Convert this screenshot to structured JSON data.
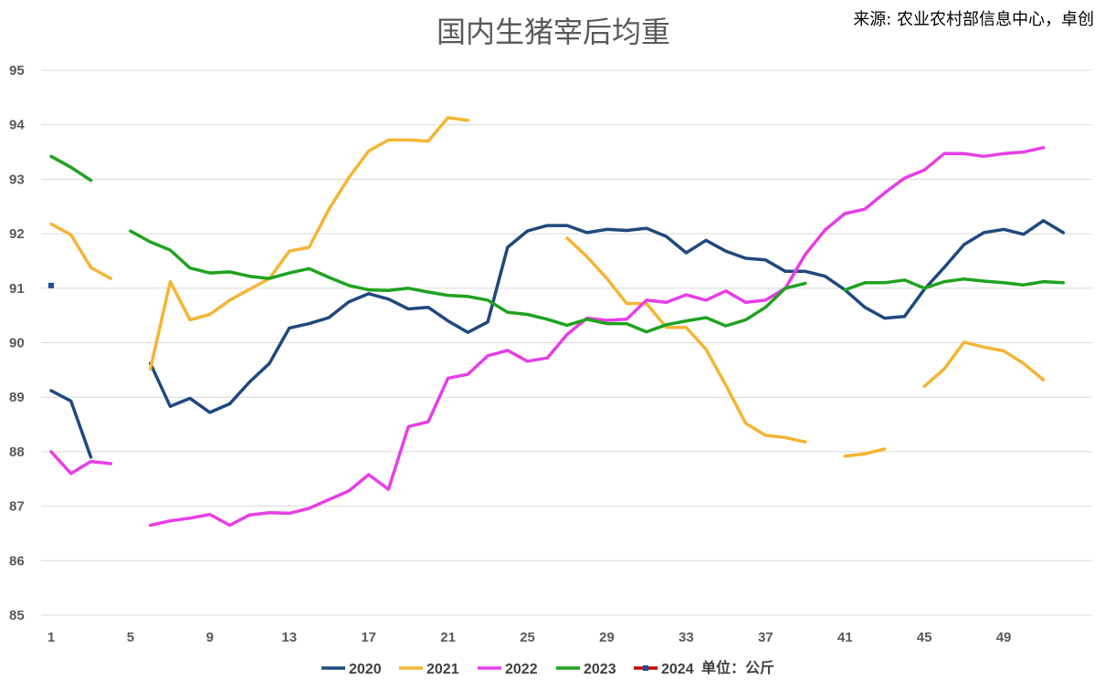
{
  "chart_data": {
    "type": "line",
    "title": "国内生猪宰后均重",
    "source": "来源: 农业农村部信息中心，卓创",
    "unit_label": "单位：公斤",
    "xlabel": "",
    "ylabel": "",
    "ylim": [
      85,
      95
    ],
    "y_ticks": [
      85,
      86,
      87,
      88,
      89,
      90,
      91,
      92,
      93,
      94,
      95
    ],
    "x_range": [
      1,
      53
    ],
    "x_ticks": [
      1,
      5,
      9,
      13,
      17,
      21,
      25,
      29,
      33,
      37,
      41,
      45,
      49
    ],
    "grid": "horizontal",
    "legend_position": "bottom",
    "series": [
      {
        "name": "2020",
        "color": "#1F497D",
        "values": [
          89.12,
          88.93,
          87.9,
          null,
          null,
          89.62,
          88.83,
          88.98,
          88.72,
          88.88,
          89.28,
          89.62,
          90.27,
          90.35,
          90.46,
          90.75,
          90.9,
          90.8,
          90.62,
          90.65,
          90.4,
          90.19,
          90.38,
          91.75,
          92.05,
          92.15,
          92.15,
          92.02,
          92.08,
          92.06,
          92.1,
          91.95,
          91.65,
          91.88,
          91.68,
          91.55,
          91.52,
          91.31,
          91.31,
          91.22,
          90.97,
          90.65,
          90.45,
          90.48,
          90.98,
          91.38,
          91.8,
          92.02,
          92.08,
          91.99,
          92.24,
          92.02
        ]
      },
      {
        "name": "2021",
        "color": "#F4B533",
        "values": [
          92.18,
          91.98,
          91.38,
          91.18,
          null,
          89.52,
          91.12,
          90.42,
          90.52,
          90.78,
          90.98,
          91.18,
          91.68,
          91.75,
          92.45,
          93.03,
          93.52,
          93.72,
          93.72,
          93.7,
          94.13,
          94.08,
          null,
          null,
          null,
          null,
          91.92,
          91.58,
          91.18,
          90.72,
          90.72,
          90.28,
          90.28,
          89.88,
          89.22,
          88.52,
          88.3,
          88.26,
          88.18,
          null,
          87.92,
          87.96,
          88.05,
          null,
          89.2,
          89.52,
          90.01,
          89.92,
          89.85,
          89.62,
          89.32,
          null
        ]
      },
      {
        "name": "2022",
        "color": "#E63EE6",
        "values": [
          88.0,
          87.6,
          87.82,
          87.78,
          null,
          86.65,
          86.73,
          86.78,
          86.85,
          86.65,
          86.84,
          86.88,
          86.87,
          86.96,
          87.12,
          87.28,
          87.58,
          87.31,
          88.46,
          88.55,
          89.35,
          89.42,
          89.76,
          89.86,
          89.66,
          89.72,
          90.15,
          90.45,
          90.41,
          90.43,
          90.78,
          90.74,
          90.88,
          90.78,
          90.95,
          90.74,
          90.78,
          91.0,
          91.62,
          92.07,
          92.37,
          92.45,
          92.75,
          93.02,
          93.17,
          93.47,
          93.47,
          93.42,
          93.47,
          93.5,
          93.58,
          null
        ]
      },
      {
        "name": "2023",
        "color": "#1FA21F",
        "values": [
          93.42,
          93.22,
          92.98,
          null,
          92.05,
          91.85,
          91.7,
          91.37,
          91.28,
          91.3,
          91.22,
          91.18,
          91.28,
          91.36,
          91.2,
          91.05,
          90.97,
          90.96,
          91.0,
          90.93,
          90.87,
          90.85,
          90.78,
          90.56,
          90.52,
          90.43,
          90.32,
          90.43,
          90.35,
          90.35,
          90.2,
          90.33,
          90.4,
          90.46,
          90.31,
          90.42,
          90.65,
          91.0,
          91.09,
          null,
          90.97,
          91.1,
          91.1,
          91.15,
          91.0,
          91.12,
          91.17,
          91.13,
          91.1,
          91.06,
          91.12,
          91.1
        ]
      },
      {
        "name": "2024",
        "color": "#1F4E9A",
        "legend_line_color": "#C00000",
        "values": [
          91.05,
          null,
          null,
          null,
          null,
          null,
          null,
          null,
          null,
          null,
          null,
          null,
          null,
          null,
          null,
          null,
          null,
          null,
          null,
          null,
          null,
          null,
          null,
          null,
          null,
          null,
          null,
          null,
          null,
          null,
          null,
          null,
          null,
          null,
          null,
          null,
          null,
          null,
          null,
          null,
          null,
          null,
          null,
          null,
          null,
          null,
          null,
          null,
          null,
          null,
          null,
          null
        ]
      }
    ]
  }
}
